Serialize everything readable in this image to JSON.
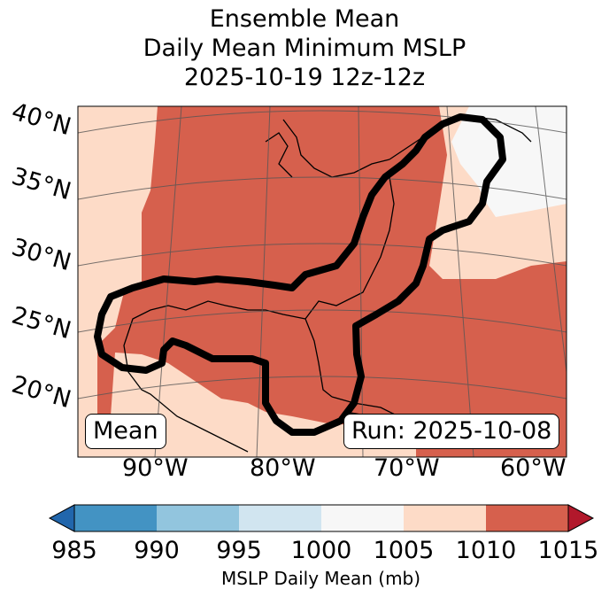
{
  "title": {
    "line1": "Ensemble Mean",
    "line2": "Daily Mean Minimum MSLP",
    "line3": "2025-10-19 12z-12z"
  },
  "map": {
    "lat_labels": [
      "40°N",
      "35°N",
      "30°N",
      "25°N",
      "20°N"
    ],
    "lon_labels": [
      "90°W",
      "80°W",
      "70°W",
      "60°W"
    ],
    "stat_box": "Mean",
    "run_box": "Run: 2025-10-08",
    "region_colors": {
      "1005-1010": "#fddbc7",
      "1010-1015": "#d6604d",
      "1000-1005": "#f7f7f7"
    }
  },
  "colorbar": {
    "ticks": [
      "985",
      "990",
      "995",
      "1000",
      "1005",
      "1010",
      "1015"
    ],
    "label": "MSLP Daily Mean (mb)",
    "colors": [
      "#4393c3",
      "#92c5de",
      "#d1e5f0",
      "#f7f7f7",
      "#fddbc7",
      "#d6604d"
    ],
    "under_color": "#2166ac",
    "over_color": "#b2182b"
  }
}
